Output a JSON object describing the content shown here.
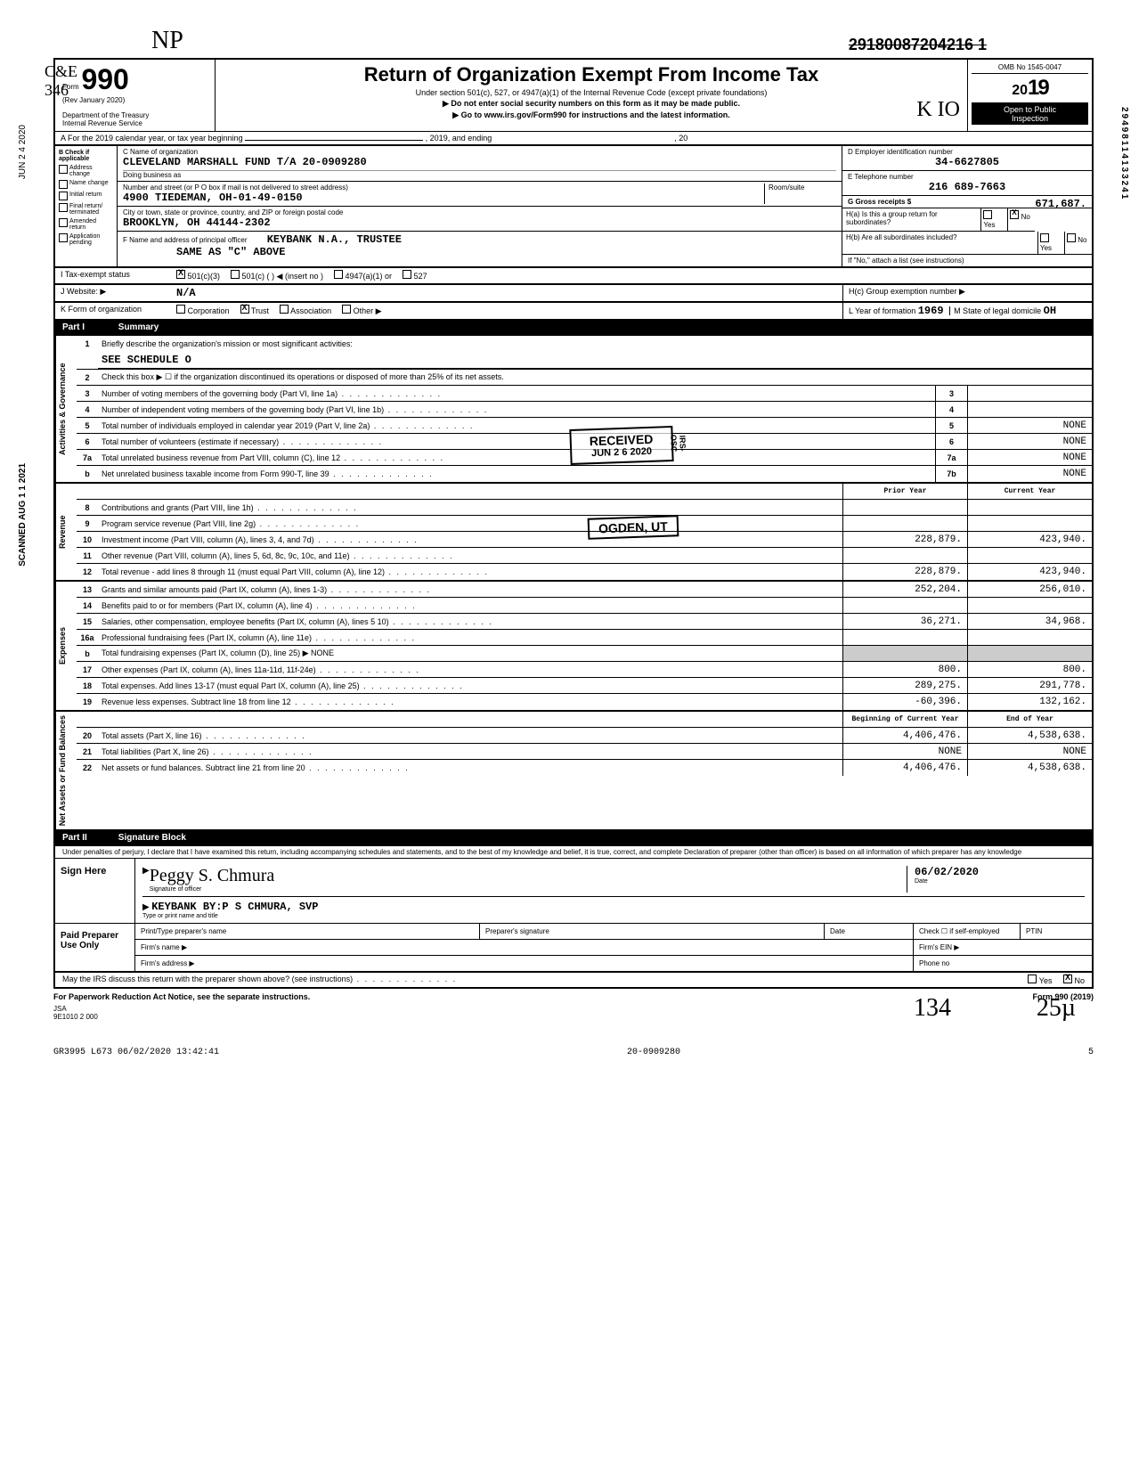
{
  "header": {
    "strikethrough_id": "29180087204216 1",
    "form_label": "Form",
    "form_number": "990",
    "rev": "(Rev  January 2020)",
    "dept": "Department of the Treasury",
    "irs": "Internal Revenue Service",
    "title": "Return of Organization Exempt From Income Tax",
    "sub1": "Under section 501(c), 527, or 4947(a)(1) of the Internal Revenue Code (except private foundations)",
    "sub2": "▶ Do not enter social security numbers on this form as it may be made public.",
    "sub3": "▶ Go to www.irs.gov/Form990 for instructions and the latest information.",
    "omb": "OMB No 1545-0047",
    "year": "2019",
    "open": "Open to Public",
    "inspect": "Inspection"
  },
  "row_a": {
    "text1": "A  For the 2019 calendar year, or tax year beginning",
    "text2": ", 2019, and ending",
    "text3": ", 20"
  },
  "col_b": {
    "header": "B  Check if applicable",
    "items": [
      "Address change",
      "Name change",
      "Initial return",
      "Final return/ terminated",
      "Amended return",
      "Application pending"
    ]
  },
  "col_c": {
    "name_label": "C Name of organization",
    "name": "CLEVELAND MARSHALL FUND T/A 20-0909280",
    "dba_label": "Doing business as",
    "addr_label": "Number and street (or P O  box if mail is not delivered to street address)",
    "room_label": "Room/suite",
    "addr": "4900 TIEDEMAN, OH-01-49-0150",
    "city_label": "City or town, state or province, country, and ZIP or foreign postal code",
    "city": "BROOKLYN, OH  44144-2302",
    "officer_label": "F Name and address of principal officer",
    "officer": "KEYBANK N.A., TRUSTEE",
    "officer_addr": "SAME AS \"C\" ABOVE"
  },
  "col_d": {
    "ein_label": "D Employer identification number",
    "ein": "34-6627805",
    "phone_label": "E Telephone number",
    "phone": "216 689-7663",
    "gross_label": "G Gross receipts $",
    "gross": "671,687.",
    "h_a": "H(a)  Is this a group return for subordinates?",
    "h_b": "H(b)  Are all subordinates included?",
    "h_note": "If \"No,\" attach a list (see instructions)",
    "h_c": "H(c) Group exemption number ▶",
    "yes": "Yes",
    "no": "No",
    "x_mark": "X"
  },
  "row_i": {
    "label": "I    Tax-exempt status",
    "opt1": "501(c)(3)",
    "opt2": "501(c) (",
    "insert": "(insert no )",
    "opt3": "4947(a)(1) or",
    "opt4": "527",
    "x_mark": "X"
  },
  "row_j": {
    "label": "J    Website: ▶",
    "value": "N/A"
  },
  "row_k": {
    "label": "K   Form of organization",
    "opts": [
      "Corporation",
      "Trust",
      "Association",
      "Other ▶"
    ],
    "x_mark": "X",
    "l_label": "L Year of formation",
    "l_val": "1969",
    "m_label": "M State of legal domicile",
    "m_val": "OH"
  },
  "part1": {
    "label": "Part I",
    "title": "Summary"
  },
  "summary": {
    "sections": [
      {
        "vert": "Activities & Governance",
        "lines": [
          {
            "num": "1",
            "desc": "Briefly describe the organization's mission or most significant activities:",
            "type": "text"
          },
          {
            "num": "",
            "desc_val": "SEE SCHEDULE O",
            "type": "value-line"
          },
          {
            "num": "2",
            "desc": "Check this box ▶ ☐ if the organization discontinued its operations or disposed of more than 25% of its net assets.",
            "type": "plain"
          },
          {
            "num": "3",
            "desc": "Number of voting members of the governing body (Part VI, line 1a)",
            "box": "3",
            "val": ""
          },
          {
            "num": "4",
            "desc": "Number of independent voting members of the governing body (Part VI, line 1b)",
            "box": "4",
            "val": ""
          },
          {
            "num": "5",
            "desc": "Total number of individuals employed in calendar year 2019 (Part V, line 2a)",
            "box": "5",
            "val": "NONE"
          },
          {
            "num": "6",
            "desc": "Total number of volunteers (estimate if necessary)",
            "box": "6",
            "val": "NONE"
          },
          {
            "num": "7a",
            "desc": "Total unrelated business revenue from Part VIII, column (C), line 12",
            "box": "7a",
            "val": "NONE"
          },
          {
            "num": "b",
            "desc": "Net unrelated business taxable income from Form 990-T, line 39",
            "box": "7b",
            "val": "NONE"
          }
        ]
      },
      {
        "vert": "Revenue",
        "header": {
          "prior": "Prior Year",
          "current": "Current Year"
        },
        "lines": [
          {
            "num": "8",
            "desc": "Contributions and grants (Part VIII, line 1h)",
            "prior": "",
            "current": ""
          },
          {
            "num": "9",
            "desc": "Program service revenue (Part VIII, line 2g)",
            "prior": "",
            "current": ""
          },
          {
            "num": "10",
            "desc": "Investment income (Part VIII, column (A), lines 3, 4, and 7d)",
            "prior": "228,879.",
            "current": "423,940."
          },
          {
            "num": "11",
            "desc": "Other revenue (Part VIII, column (A), lines 5, 6d, 8c, 9c, 10c, and 11e)",
            "prior": "",
            "current": ""
          },
          {
            "num": "12",
            "desc": "Total revenue - add lines 8 through 11 (must equal Part VIII, column (A), line 12)",
            "prior": "228,879.",
            "current": "423,940."
          }
        ]
      },
      {
        "vert": "Expenses",
        "lines": [
          {
            "num": "13",
            "desc": "Grants and similar amounts paid (Part IX, column (A), lines 1-3)",
            "prior": "252,204.",
            "current": "256,010."
          },
          {
            "num": "14",
            "desc": "Benefits paid to or for members (Part IX, column (A), line 4)",
            "prior": "",
            "current": ""
          },
          {
            "num": "15",
            "desc": "Salaries, other compensation, employee benefits (Part IX, column (A), lines 5 10)",
            "prior": "36,271.",
            "current": "34,968."
          },
          {
            "num": "16a",
            "desc": "Professional fundraising fees (Part IX, column (A), line 11e)",
            "prior": "",
            "current": ""
          },
          {
            "num": "b",
            "desc": "Total fundraising expenses (Part IX, column (D), line 25) ▶                    NONE",
            "type": "plain-grey"
          },
          {
            "num": "17",
            "desc": "Other expenses (Part IX, column (A), lines 11a-11d, 11f-24e)",
            "prior": "800.",
            "current": "800."
          },
          {
            "num": "18",
            "desc": "Total expenses. Add lines 13-17 (must equal Part IX, column (A), line 25)",
            "prior": "289,275.",
            "current": "291,778."
          },
          {
            "num": "19",
            "desc": "Revenue less expenses. Subtract line 18 from line 12",
            "prior": "-60,396.",
            "current": "132,162."
          }
        ]
      },
      {
        "vert": "Net Assets or Fund Balances",
        "header": {
          "prior": "Beginning of Current Year",
          "current": "End of Year"
        },
        "lines": [
          {
            "num": "20",
            "desc": "Total assets (Part X, line 16)",
            "prior": "4,406,476.",
            "current": "4,538,638."
          },
          {
            "num": "21",
            "desc": "Total liabilities (Part X, line 26)",
            "prior": "NONE",
            "current": "NONE"
          },
          {
            "num": "22",
            "desc": "Net assets or fund balances. Subtract line 21 from line 20",
            "prior": "4,406,476.",
            "current": "4,538,638."
          }
        ]
      }
    ]
  },
  "part2": {
    "label": "Part II",
    "title": "Signature Block"
  },
  "sig": {
    "penalty": "Under penalties of perjury, I declare that I have examined this return, including accompanying schedules and statements, and to the best of my knowledge and belief, it is true, correct, and complete  Declaration of preparer (other than officer) is based on all information of which preparer has any knowledge",
    "sign_here": "Sign Here",
    "signature": "Peggy S. Chmura",
    "sig_label": "Signature of officer",
    "date_label": "Date",
    "date": "06/02/2020",
    "name_title": "KEYBANK BY:P S CHMURA, SVP",
    "name_title_label": "Type or print name and title",
    "paid_prep": "Paid Preparer Use Only",
    "prep_name_label": "Print/Type preparer's name",
    "prep_sig_label": "Preparer's signature",
    "prep_date_label": "Date",
    "check_label": "Check ☐ if self-employed",
    "ptin_label": "PTIN",
    "firm_name_label": "Firm's name   ▶",
    "firm_ein_label": "Firm's EIN ▶",
    "firm_addr_label": "Firm's address ▶",
    "phone_label": "Phone no"
  },
  "footer": {
    "discuss": "May the IRS discuss this return with the preparer shown above? (see instructions)",
    "yes": "Yes",
    "no": "No",
    "x": "X",
    "paperwork": "For Paperwork Reduction Act Notice, see the separate instructions.",
    "form_ref": "Form 990 (2019)",
    "jsa": "JSA",
    "jsa_code": "9E1010 2 000",
    "bottom_left": "GR3995 L673 06/02/2020 13:42:41",
    "bottom_mid": "20-0909280",
    "bottom_right": "5",
    "hand1": "134",
    "hand2": "25µ"
  },
  "stamps": {
    "received": "RECEIVED",
    "received_date": "JUN 2 6 2020",
    "received_loc": "IRS-OSC",
    "ogden": "OGDEN, UT",
    "scanned": "SCANNED AUG 1 1 2021",
    "postmark": "JUN 2 4 2020",
    "side_num": "29498114133241"
  }
}
